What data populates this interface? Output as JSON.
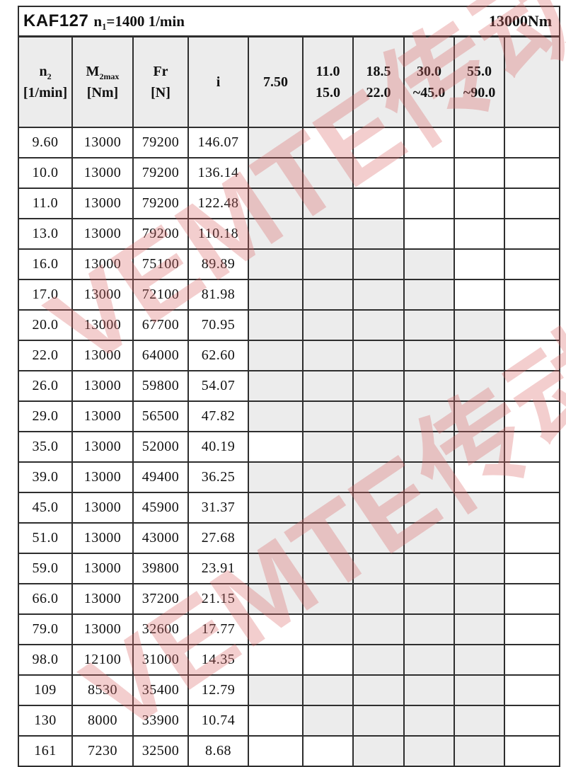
{
  "title": {
    "model": "KAF127",
    "n_symbol": "n",
    "n_sub": "1",
    "speed_rest": "=1400 1/min",
    "torque": "13000Nm"
  },
  "header": {
    "n2": {
      "main": "n",
      "sub": "2",
      "unit": "[1/min]"
    },
    "m2max": {
      "main": "M",
      "sub": "2max",
      "unit": "[Nm]"
    },
    "fr": {
      "main": "Fr",
      "unit": "[N]"
    },
    "i": {
      "label": "i"
    },
    "motor_cols": [
      {
        "line1": "7.50",
        "line2": ""
      },
      {
        "line1": "11.0",
        "line2": "15.0"
      },
      {
        "line1": "18.5",
        "line2": "22.0"
      },
      {
        "line1": "30.0",
        "line2": "~45.0"
      },
      {
        "line1": "55.0",
        "line2": "~90.0"
      }
    ]
  },
  "rows": [
    {
      "n2": "9.60",
      "m2max": "13000",
      "fr": "79200",
      "i": "146.07",
      "avail": [
        1,
        0,
        0,
        0,
        0
      ]
    },
    {
      "n2": "10.0",
      "m2max": "13000",
      "fr": "79200",
      "i": "136.14",
      "avail": [
        1,
        1,
        0,
        0,
        0
      ]
    },
    {
      "n2": "11.0",
      "m2max": "13000",
      "fr": "79200",
      "i": "122.48",
      "avail": [
        1,
        1,
        0,
        0,
        0
      ]
    },
    {
      "n2": "13.0",
      "m2max": "13000",
      "fr": "79200",
      "i": "110.18",
      "avail": [
        1,
        1,
        1,
        0,
        0
      ]
    },
    {
      "n2": "16.0",
      "m2max": "13000",
      "fr": "75100",
      "i": "89.89",
      "avail": [
        1,
        1,
        1,
        1,
        0
      ]
    },
    {
      "n2": "17.0",
      "m2max": "13000",
      "fr": "72100",
      "i": "81.98",
      "avail": [
        1,
        1,
        1,
        1,
        0
      ]
    },
    {
      "n2": "20.0",
      "m2max": "13000",
      "fr": "67700",
      "i": "70.95",
      "avail": [
        1,
        1,
        1,
        1,
        1
      ]
    },
    {
      "n2": "22.0",
      "m2max": "13000",
      "fr": "64000",
      "i": "62.60",
      "avail": [
        1,
        1,
        1,
        1,
        1
      ]
    },
    {
      "n2": "26.0",
      "m2max": "13000",
      "fr": "59800",
      "i": "54.07",
      "avail": [
        1,
        1,
        1,
        1,
        1
      ]
    },
    {
      "n2": "29.0",
      "m2max": "13000",
      "fr": "56500",
      "i": "47.82",
      "avail": [
        1,
        1,
        1,
        1,
        1
      ]
    },
    {
      "n2": "35.0",
      "m2max": "13000",
      "fr": "52000",
      "i": "40.19",
      "avail": [
        0,
        1,
        1,
        1,
        1
      ]
    },
    {
      "n2": "39.0",
      "m2max": "13000",
      "fr": "49400",
      "i": "36.25",
      "avail": [
        1,
        1,
        1,
        1,
        0
      ]
    },
    {
      "n2": "45.0",
      "m2max": "13000",
      "fr": "45900",
      "i": "31.37",
      "avail": [
        1,
        1,
        1,
        1,
        1
      ]
    },
    {
      "n2": "51.0",
      "m2max": "13000",
      "fr": "43000",
      "i": "27.68",
      "avail": [
        1,
        1,
        1,
        1,
        1
      ]
    },
    {
      "n2": "59.0",
      "m2max": "13000",
      "fr": "39800",
      "i": "23.91",
      "avail": [
        1,
        1,
        1,
        1,
        1
      ]
    },
    {
      "n2": "66.0",
      "m2max": "13000",
      "fr": "37200",
      "i": "21.15",
      "avail": [
        1,
        1,
        1,
        1,
        1
      ]
    },
    {
      "n2": "79.0",
      "m2max": "13000",
      "fr": "32600",
      "i": "17.77",
      "avail": [
        0,
        1,
        1,
        1,
        1
      ]
    },
    {
      "n2": "98.0",
      "m2max": "12100",
      "fr": "31000",
      "i": "14.35",
      "avail": [
        0,
        0,
        1,
        1,
        1
      ]
    },
    {
      "n2": "109",
      "m2max": "8530",
      "fr": "35400",
      "i": "12.79",
      "avail": [
        1,
        1,
        1,
        1,
        1
      ]
    },
    {
      "n2": "130",
      "m2max": "8000",
      "fr": "33900",
      "i": "10.74",
      "avail": [
        0,
        1,
        1,
        1,
        1
      ]
    },
    {
      "n2": "161",
      "m2max": "7230",
      "fr": "32500",
      "i": "8.68",
      "avail": [
        0,
        0,
        1,
        1,
        1
      ]
    }
  ],
  "watermark": {
    "text": "VEMTE传动"
  },
  "colors": {
    "cell_shade": "#ececec",
    "border": "#2e2e2e",
    "watermark": "rgba(220,105,105,0.33)",
    "page_bg": "#ffffff"
  }
}
